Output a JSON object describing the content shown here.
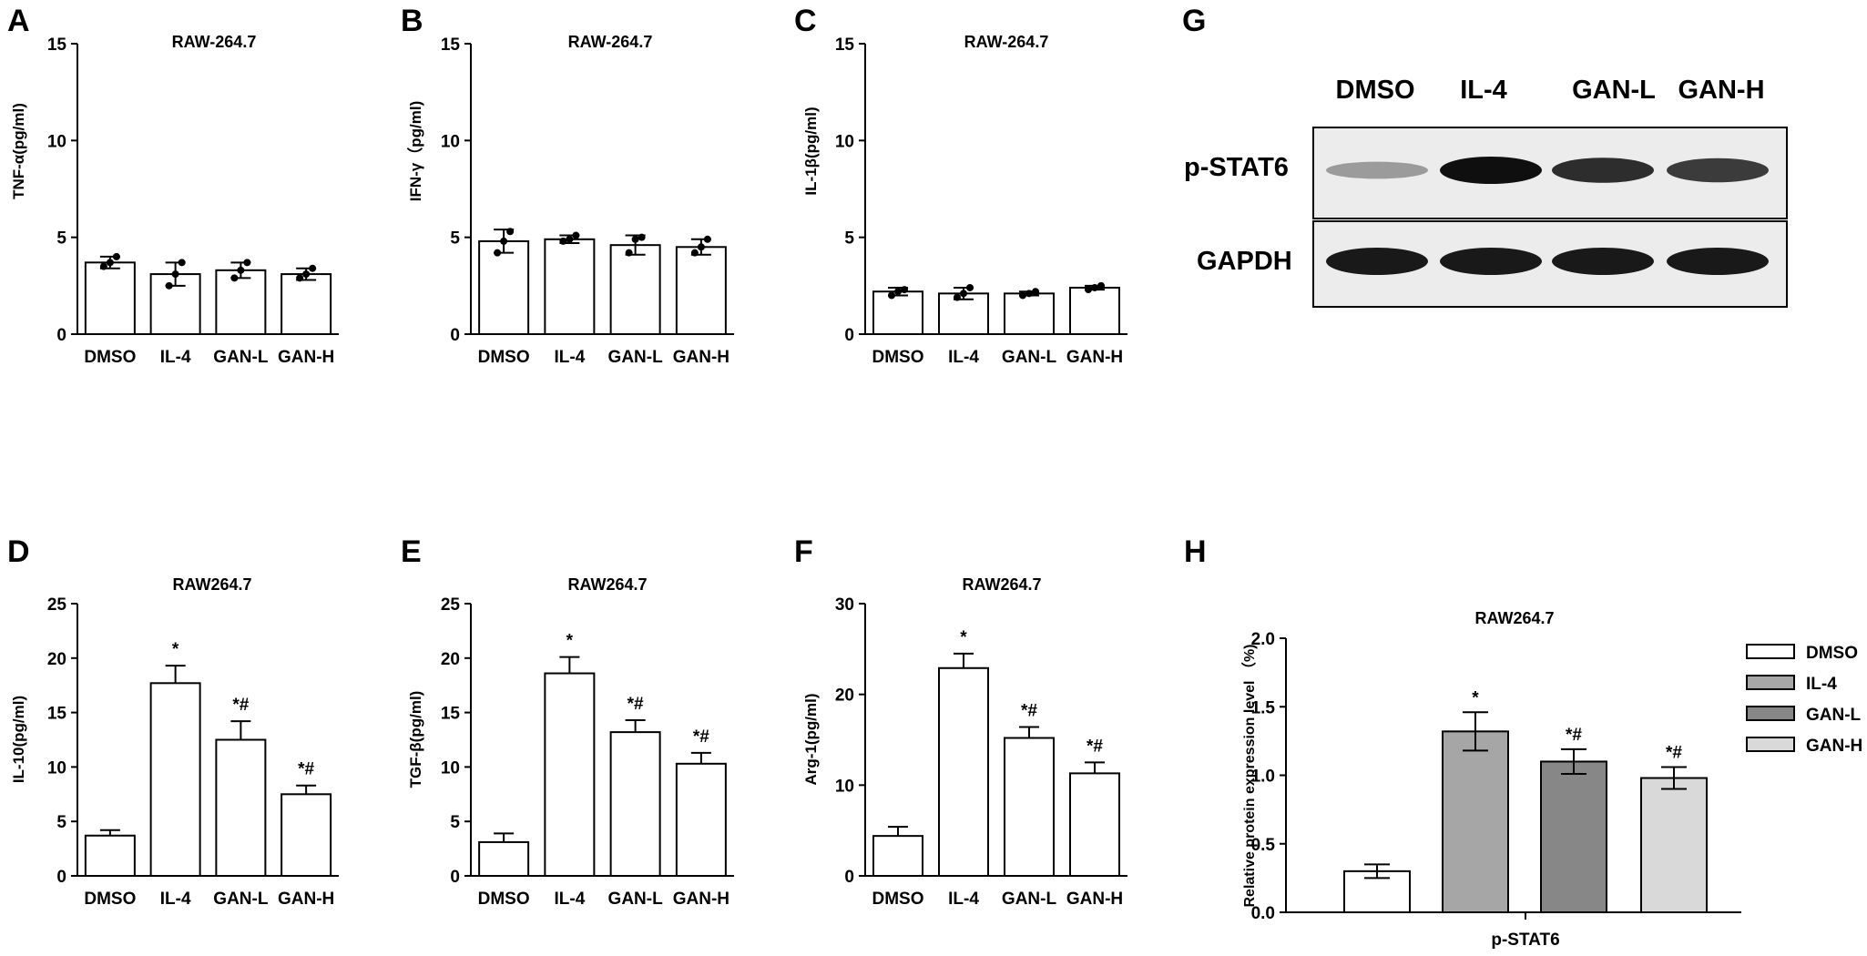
{
  "panels": [
    {
      "letter": "A",
      "title": "RAW-264.7",
      "ylabel": "TNF-α(pg/ml)"
    },
    {
      "letter": "B",
      "title": "RAW-264.7",
      "ylabel": "IFN-γ（pg/ml)"
    },
    {
      "letter": "C",
      "title": "RAW-264.7",
      "ylabel": "IL-1β(pg/ml)"
    },
    {
      "letter": "D",
      "title": "RAW264.7",
      "ylabel": "IL-10(pg/ml)"
    },
    {
      "letter": "E",
      "title": "RAW264.7",
      "ylabel": "TGF-β(pg/ml)"
    },
    {
      "letter": "F",
      "title": "RAW264.7",
      "ylabel": "Arg-1(pg/ml)"
    },
    {
      "letter": "G"
    },
    {
      "letter": "H",
      "title": "RAW264.7",
      "ylabel": "Relative protein expression level （%)"
    }
  ],
  "blot": {
    "lanes": [
      "DMSO",
      "IL-4",
      "GAN-L",
      "GAN-H"
    ],
    "rows": [
      "p-STAT6",
      "GAPDH"
    ],
    "band_intensity": {
      "p-STAT6": [
        0.3,
        1.0,
        0.85,
        0.78
      ],
      "GAPDH": [
        0.95,
        0.95,
        0.95,
        0.95
      ]
    }
  },
  "chart_data": [
    {
      "id": "A",
      "type": "bar",
      "title": "RAW-264.7",
      "ylabel": "TNF-α(pg/ml)",
      "categories": [
        "DMSO",
        "IL-4",
        "GAN-L",
        "GAN-H"
      ],
      "values": [
        3.7,
        3.1,
        3.3,
        3.1
      ],
      "errors": [
        0.3,
        0.6,
        0.4,
        0.3
      ],
      "points": [
        [
          3.5,
          3.7,
          4.0
        ],
        [
          2.5,
          3.1,
          3.7
        ],
        [
          2.9,
          3.3,
          3.7
        ],
        [
          2.9,
          3.1,
          3.4
        ]
      ],
      "ylim": [
        0,
        15
      ],
      "yticks": [
        0,
        5,
        10,
        15
      ],
      "annotations": [
        "",
        "",
        "",
        ""
      ]
    },
    {
      "id": "B",
      "type": "bar",
      "title": "RAW-264.7",
      "ylabel": "IFN-γ（pg/ml)",
      "categories": [
        "DMSO",
        "IL-4",
        "GAN-L",
        "GAN-H"
      ],
      "values": [
        4.8,
        4.9,
        4.6,
        4.5
      ],
      "errors": [
        0.6,
        0.2,
        0.5,
        0.4
      ],
      "points": [
        [
          4.2,
          4.8,
          5.3
        ],
        [
          4.8,
          4.9,
          5.1
        ],
        [
          4.2,
          4.9,
          5.0
        ],
        [
          4.2,
          4.5,
          4.9
        ]
      ],
      "ylim": [
        0,
        15
      ],
      "yticks": [
        0,
        5,
        10,
        15
      ],
      "annotations": [
        "",
        "",
        "",
        ""
      ]
    },
    {
      "id": "C",
      "type": "bar",
      "title": "RAW-264.7",
      "ylabel": "IL-1β(pg/ml)",
      "categories": [
        "DMSO",
        "IL-4",
        "GAN-L",
        "GAN-H"
      ],
      "values": [
        2.2,
        2.1,
        2.1,
        2.4
      ],
      "errors": [
        0.2,
        0.3,
        0.1,
        0.1
      ],
      "points": [
        [
          2.0,
          2.2,
          2.3
        ],
        [
          1.9,
          2.1,
          2.4
        ],
        [
          2.0,
          2.1,
          2.2
        ],
        [
          2.3,
          2.4,
          2.5
        ]
      ],
      "ylim": [
        0,
        15
      ],
      "yticks": [
        0,
        5,
        10,
        15
      ],
      "annotations": [
        "",
        "",
        "",
        ""
      ]
    },
    {
      "id": "D",
      "type": "bar",
      "title": "RAW264.7",
      "ylabel": "IL-10(pg/ml)",
      "categories": [
        "DMSO",
        "IL-4",
        "GAN-L",
        "GAN-H"
      ],
      "values": [
        3.7,
        17.7,
        12.5,
        7.5
      ],
      "errors": [
        0.5,
        1.6,
        1.7,
        0.8
      ],
      "ylim": [
        0,
        25
      ],
      "yticks": [
        0,
        5,
        10,
        15,
        20,
        25
      ],
      "annotations": [
        "",
        "*",
        "*#",
        "*#"
      ]
    },
    {
      "id": "E",
      "type": "bar",
      "title": "RAW264.7",
      "ylabel": "TGF-β(pg/ml)",
      "categories": [
        "DMSO",
        "IL-4",
        "GAN-L",
        "GAN-H"
      ],
      "values": [
        3.1,
        18.6,
        13.2,
        10.3
      ],
      "errors": [
        0.8,
        1.5,
        1.1,
        1.0
      ],
      "ylim": [
        0,
        25
      ],
      "yticks": [
        0,
        5,
        10,
        15,
        20,
        25
      ],
      "annotations": [
        "",
        "*",
        "*#",
        "*#"
      ]
    },
    {
      "id": "F",
      "type": "bar",
      "title": "RAW264.7",
      "ylabel": "Arg-1(pg/ml)",
      "categories": [
        "DMSO",
        "IL-4",
        "GAN-L",
        "GAN-H"
      ],
      "values": [
        4.4,
        22.9,
        15.2,
        11.3
      ],
      "errors": [
        1.0,
        1.6,
        1.2,
        1.2
      ],
      "ylim": [
        0,
        30
      ],
      "yticks": [
        0,
        10,
        20,
        30
      ],
      "annotations": [
        "",
        "*",
        "*#",
        "*#"
      ]
    },
    {
      "id": "H",
      "type": "bar",
      "title": "RAW264.7",
      "ylabel": "Relative protein expression level （%)",
      "categories": [
        "p-STAT6"
      ],
      "series": [
        {
          "name": "DMSO",
          "value": 0.3,
          "error": 0.05,
          "color": "#ffffff",
          "annotation": ""
        },
        {
          "name": "IL-4",
          "value": 1.32,
          "error": 0.14,
          "color": "#a6a6a6",
          "annotation": "*"
        },
        {
          "name": "GAN-L",
          "value": 1.1,
          "error": 0.09,
          "color": "#878787",
          "annotation": "*#"
        },
        {
          "name": "GAN-H",
          "value": 0.98,
          "error": 0.08,
          "color": "#d9d9d9",
          "annotation": "*#"
        }
      ],
      "ylim": [
        0,
        2.0
      ],
      "yticks": [
        "0.0",
        "0.5",
        "1.0",
        "1.5",
        "2.0"
      ],
      "legend": "right"
    }
  ]
}
